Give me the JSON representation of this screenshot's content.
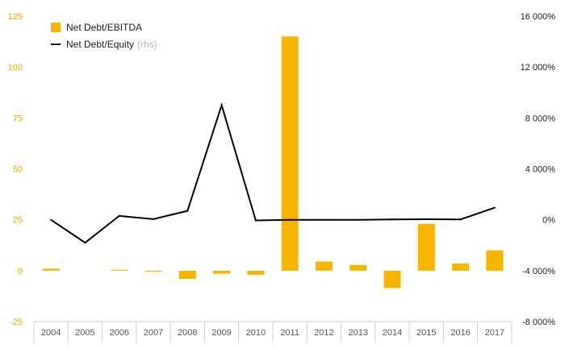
{
  "colors": {
    "bar": "#f7b500",
    "line": "#000000",
    "left_axis_text": "#e8a800",
    "right_axis_text": "#222222",
    "x_axis_text": "#555555",
    "axis_line": "#cccccc",
    "rhs_note": "#b5b5b5"
  },
  "legend": {
    "ebitda_label": "Net Debt/EBITDA",
    "equity_label": "Net Debt/Equity",
    "rhs_note": "(rhs)"
  },
  "chart_data": {
    "type": "bar",
    "categories": [
      "2004",
      "2005",
      "2006",
      "2007",
      "2008",
      "2009",
      "2010",
      "2011",
      "2012",
      "2013",
      "2014",
      "2015",
      "2016",
      "2017"
    ],
    "series": [
      {
        "name": "Net Debt/EBITDA",
        "type": "bar",
        "axis": "left",
        "values": [
          1,
          0,
          0.3,
          -0.5,
          -4,
          -1.5,
          -2,
          115,
          4.5,
          2.8,
          -8.5,
          23,
          3.5,
          10
        ]
      },
      {
        "name": "Net Debt/Equity",
        "type": "line",
        "axis": "right",
        "values": [
          0,
          -1800,
          300,
          50,
          700,
          9000,
          -50,
          0,
          0,
          0,
          30,
          40,
          30,
          950
        ]
      }
    ],
    "y_left": {
      "ticks": [
        -25,
        0,
        25,
        50,
        75,
        100,
        125
      ],
      "tick_labels": [
        "-25",
        "0",
        "25",
        "50",
        "75",
        "100",
        "125"
      ],
      "lim": [
        -25,
        125
      ]
    },
    "y_right": {
      "ticks": [
        -8000,
        -4000,
        0,
        4000,
        8000,
        12000,
        16000
      ],
      "tick_labels": [
        "-8 000%",
        "-4 000%",
        "0%",
        "4 000%",
        "8 000%",
        "12 000%",
        "16 000%"
      ],
      "lim": [
        -8000,
        16000
      ]
    },
    "legend_position": "top-left",
    "grid": false
  }
}
